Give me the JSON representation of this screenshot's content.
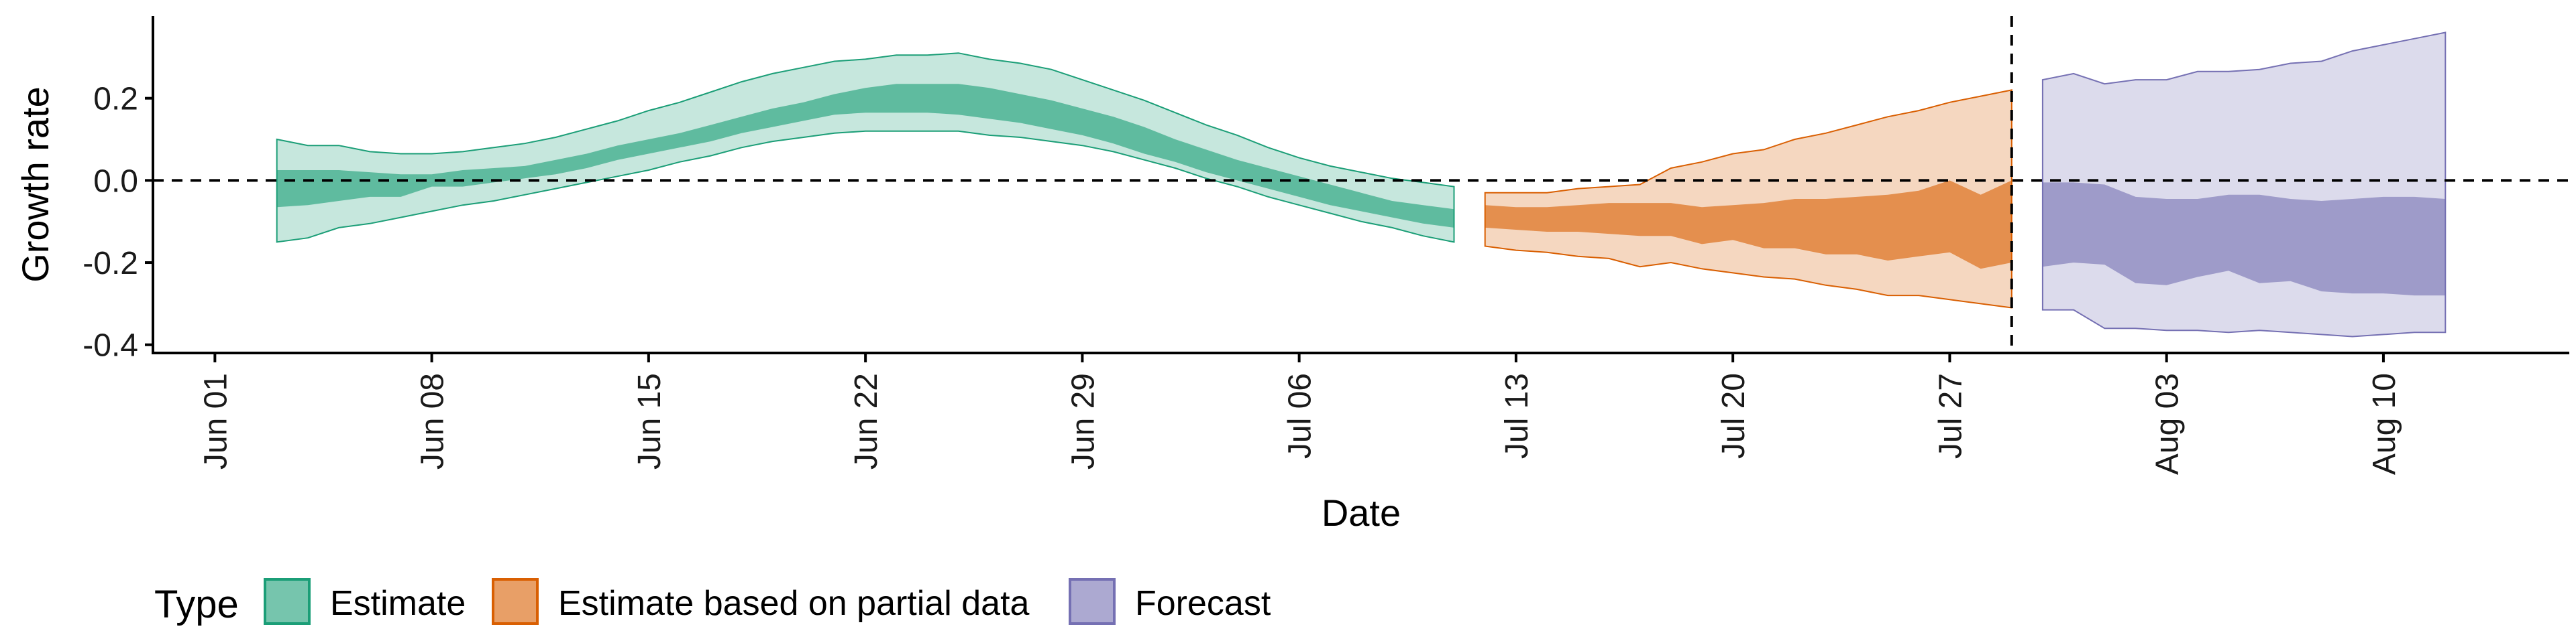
{
  "chart_data": {
    "type": "area",
    "xlabel": "Date",
    "ylabel": "Growth rate",
    "ylim": [
      -0.42,
      0.4
    ],
    "xlim": [
      "2021-05-30",
      "2021-08-16"
    ],
    "y_ticks": [
      {
        "value": 0.2,
        "label": "0.2"
      },
      {
        "value": 0.0,
        "label": "0.0"
      },
      {
        "value": -0.2,
        "label": "-0.2"
      },
      {
        "value": -0.4,
        "label": "-0.4"
      }
    ],
    "x_ticks": [
      {
        "value": "2021-06-01",
        "label": "Jun 01"
      },
      {
        "value": "2021-06-08",
        "label": "Jun 08"
      },
      {
        "value": "2021-06-15",
        "label": "Jun 15"
      },
      {
        "value": "2021-06-22",
        "label": "Jun 22"
      },
      {
        "value": "2021-06-29",
        "label": "Jun 29"
      },
      {
        "value": "2021-07-06",
        "label": "Jul 06"
      },
      {
        "value": "2021-07-13",
        "label": "Jul 13"
      },
      {
        "value": "2021-07-20",
        "label": "Jul 20"
      },
      {
        "value": "2021-07-27",
        "label": "Jul 27"
      },
      {
        "value": "2021-08-03",
        "label": "Aug 03"
      },
      {
        "value": "2021-08-10",
        "label": "Aug 10"
      }
    ],
    "reference_lines": {
      "horizontal_y": 0.0,
      "vertical_x": "2021-07-29"
    },
    "legend": {
      "title": "Type",
      "position": "bottom-left"
    },
    "series": [
      {
        "name": "Estimate",
        "color": "#1b9e77",
        "x": [
          "2021-06-03",
          "2021-06-04",
          "2021-06-05",
          "2021-06-06",
          "2021-06-07",
          "2021-06-08",
          "2021-06-09",
          "2021-06-10",
          "2021-06-11",
          "2021-06-12",
          "2021-06-13",
          "2021-06-14",
          "2021-06-15",
          "2021-06-16",
          "2021-06-17",
          "2021-06-18",
          "2021-06-19",
          "2021-06-20",
          "2021-06-21",
          "2021-06-22",
          "2021-06-23",
          "2021-06-24",
          "2021-06-25",
          "2021-06-26",
          "2021-06-27",
          "2021-06-28",
          "2021-06-29",
          "2021-06-30",
          "2021-07-01",
          "2021-07-02",
          "2021-07-03",
          "2021-07-04",
          "2021-07-05",
          "2021-07-06",
          "2021-07-07",
          "2021-07-08",
          "2021-07-09",
          "2021-07-10",
          "2021-07-11"
        ],
        "lower90": [
          -0.15,
          -0.14,
          -0.115,
          -0.105,
          -0.09,
          -0.075,
          -0.06,
          -0.05,
          -0.035,
          -0.02,
          -0.005,
          0.01,
          0.025,
          0.045,
          0.06,
          0.08,
          0.095,
          0.105,
          0.115,
          0.12,
          0.12,
          0.12,
          0.12,
          0.11,
          0.105,
          0.095,
          0.085,
          0.07,
          0.05,
          0.03,
          0.005,
          -0.015,
          -0.04,
          -0.06,
          -0.08,
          -0.1,
          -0.115,
          -0.135,
          -0.15
        ],
        "upper90": [
          0.1,
          0.085,
          0.085,
          0.07,
          0.065,
          0.065,
          0.07,
          0.08,
          0.09,
          0.105,
          0.125,
          0.145,
          0.17,
          0.19,
          0.215,
          0.24,
          0.26,
          0.275,
          0.29,
          0.295,
          0.305,
          0.305,
          0.31,
          0.295,
          0.285,
          0.27,
          0.245,
          0.22,
          0.195,
          0.165,
          0.135,
          0.11,
          0.08,
          0.055,
          0.035,
          0.02,
          0.005,
          -0.005,
          -0.015
        ],
        "lower50": [
          -0.065,
          -0.06,
          -0.05,
          -0.04,
          -0.04,
          -0.015,
          -0.015,
          -0.005,
          0.005,
          0.015,
          0.03,
          0.05,
          0.065,
          0.08,
          0.095,
          0.115,
          0.13,
          0.145,
          0.16,
          0.165,
          0.165,
          0.165,
          0.16,
          0.15,
          0.14,
          0.125,
          0.11,
          0.09,
          0.065,
          0.045,
          0.02,
          0.0,
          -0.02,
          -0.04,
          -0.06,
          -0.075,
          -0.09,
          -0.105,
          -0.115
        ],
        "upper50": [
          0.025,
          0.025,
          0.025,
          0.02,
          0.015,
          0.015,
          0.025,
          0.03,
          0.035,
          0.05,
          0.065,
          0.085,
          0.1,
          0.115,
          0.135,
          0.155,
          0.175,
          0.19,
          0.21,
          0.225,
          0.235,
          0.235,
          0.235,
          0.225,
          0.21,
          0.195,
          0.175,
          0.155,
          0.13,
          0.1,
          0.075,
          0.05,
          0.03,
          0.01,
          -0.01,
          -0.03,
          -0.05,
          -0.06,
          -0.07
        ]
      },
      {
        "name": "Estimate based on partial data",
        "color": "#d95f02",
        "x": [
          "2021-07-12",
          "2021-07-13",
          "2021-07-14",
          "2021-07-15",
          "2021-07-16",
          "2021-07-17",
          "2021-07-18",
          "2021-07-19",
          "2021-07-20",
          "2021-07-21",
          "2021-07-22",
          "2021-07-23",
          "2021-07-24",
          "2021-07-25",
          "2021-07-26",
          "2021-07-27",
          "2021-07-28",
          "2021-07-29"
        ],
        "lower90": [
          -0.16,
          -0.17,
          -0.175,
          -0.185,
          -0.19,
          -0.21,
          -0.2,
          -0.215,
          -0.225,
          -0.235,
          -0.24,
          -0.255,
          -0.265,
          -0.28,
          -0.28,
          -0.29,
          -0.3,
          -0.31
        ],
        "upper90": [
          -0.03,
          -0.03,
          -0.03,
          -0.02,
          -0.015,
          -0.01,
          0.03,
          0.045,
          0.065,
          0.075,
          0.1,
          0.115,
          0.135,
          0.155,
          0.17,
          0.19,
          0.205,
          0.22
        ],
        "lower50": [
          -0.115,
          -0.12,
          -0.125,
          -0.125,
          -0.13,
          -0.135,
          -0.135,
          -0.155,
          -0.145,
          -0.165,
          -0.165,
          -0.18,
          -0.18,
          -0.195,
          -0.185,
          -0.175,
          -0.215,
          -0.2
        ],
        "upper50": [
          -0.06,
          -0.065,
          -0.065,
          -0.06,
          -0.055,
          -0.055,
          -0.055,
          -0.065,
          -0.06,
          -0.055,
          -0.045,
          -0.045,
          -0.04,
          -0.035,
          -0.025,
          0.0,
          -0.035,
          0.0
        ]
      },
      {
        "name": "Forecast",
        "color": "#7570b3",
        "x": [
          "2021-07-30",
          "2021-07-31",
          "2021-08-01",
          "2021-08-02",
          "2021-08-03",
          "2021-08-04",
          "2021-08-05",
          "2021-08-06",
          "2021-08-07",
          "2021-08-08",
          "2021-08-09",
          "2021-08-10",
          "2021-08-11",
          "2021-08-12"
        ],
        "lower90": [
          -0.315,
          -0.315,
          -0.36,
          -0.36,
          -0.365,
          -0.365,
          -0.37,
          -0.365,
          -0.37,
          -0.375,
          -0.38,
          -0.375,
          -0.37,
          -0.37
        ],
        "upper90": [
          0.245,
          0.26,
          0.235,
          0.245,
          0.245,
          0.265,
          0.265,
          0.27,
          0.285,
          0.29,
          0.315,
          0.33,
          0.345,
          0.36
        ],
        "lower50": [
          -0.21,
          -0.2,
          -0.205,
          -0.25,
          -0.255,
          -0.235,
          -0.22,
          -0.25,
          -0.245,
          -0.27,
          -0.275,
          -0.275,
          -0.28,
          -0.28
        ],
        "upper50": [
          -0.005,
          -0.005,
          -0.01,
          -0.04,
          -0.045,
          -0.045,
          -0.035,
          -0.035,
          -0.045,
          -0.05,
          -0.045,
          -0.04,
          -0.04,
          -0.045
        ]
      }
    ]
  }
}
